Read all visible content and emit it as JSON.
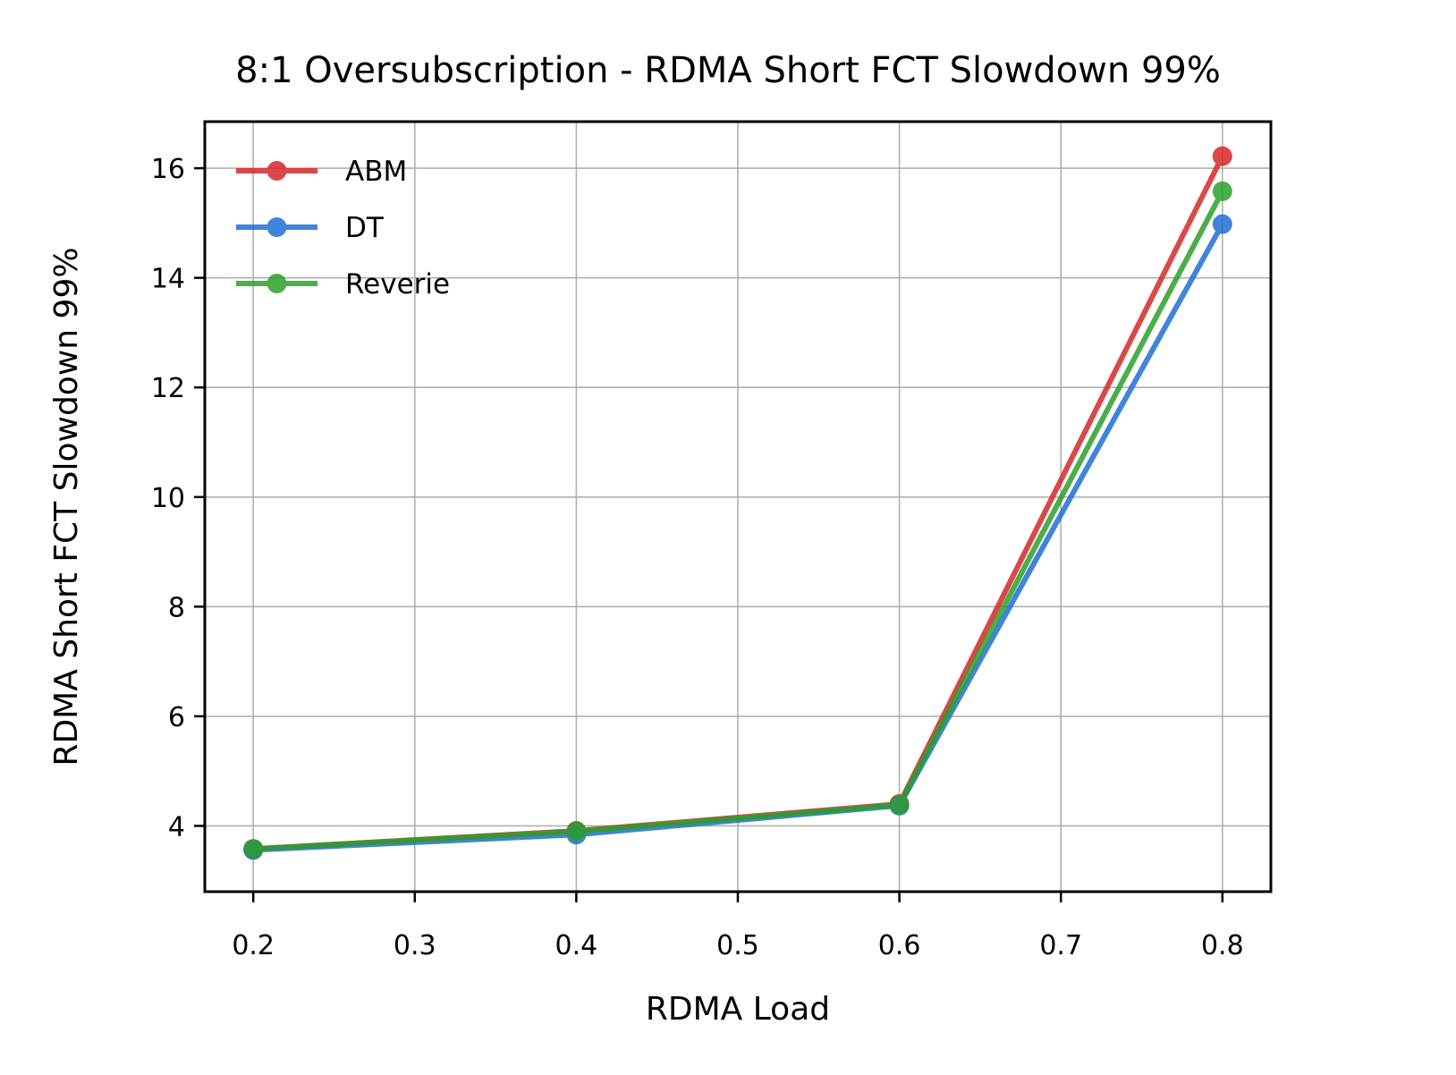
{
  "chart_data": {
    "type": "line",
    "title": "8:1 Oversubscription - RDMA Short FCT Slowdown 99%",
    "xlabel": "RDMA Load",
    "ylabel": "RDMA Short FCT Slowdown 99%",
    "x": [
      0.2,
      0.4,
      0.6,
      0.8
    ],
    "xticks": [
      "0.2",
      "0.3",
      "0.4",
      "0.5",
      "0.6",
      "0.7",
      "0.8"
    ],
    "xtick_values": [
      0.2,
      0.3,
      0.4,
      0.5,
      0.6,
      0.7,
      0.8
    ],
    "yticks": [
      "4",
      "6",
      "8",
      "10",
      "12",
      "14",
      "16"
    ],
    "ytick_values": [
      4,
      6,
      8,
      10,
      12,
      14,
      16
    ],
    "xlim": [
      0.17,
      0.83
    ],
    "ylim": [
      2.8,
      16.85
    ],
    "grid": true,
    "legend_position": "upper-left",
    "series": [
      {
        "name": "ABM",
        "color": "#d62728",
        "values": [
          3.58,
          3.91,
          4.4,
          16.22
        ]
      },
      {
        "name": "DT",
        "color": "#1f6fd6",
        "values": [
          3.56,
          3.84,
          4.37,
          14.98
        ]
      },
      {
        "name": "Reverie",
        "color": "#2ca02c",
        "values": [
          3.58,
          3.9,
          4.38,
          15.58
        ]
      }
    ]
  }
}
